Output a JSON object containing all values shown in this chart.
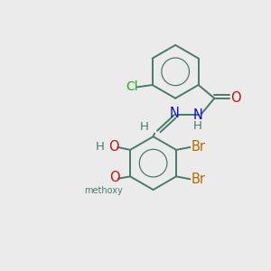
{
  "background_color": "#ebebeb",
  "bond_color": "#4a7a6a",
  "atoms": {
    "Cl": {
      "color": "#22aa22"
    },
    "N": {
      "color": "#1111cc"
    },
    "O": {
      "color": "#cc1111"
    },
    "Br": {
      "color": "#bb6600"
    },
    "H": {
      "color": "#4a7a6a"
    },
    "C": {
      "color": "#4a7a6a"
    }
  },
  "figsize": [
    3.0,
    3.0
  ],
  "dpi": 100
}
